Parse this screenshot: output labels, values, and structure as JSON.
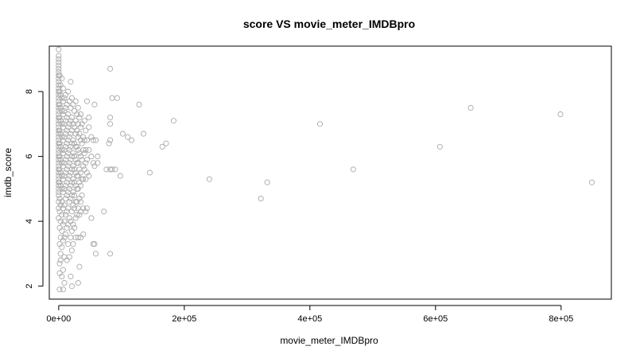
{
  "chart_data": {
    "type": "scatter",
    "title": "score VS movie_meter_IMDBpro",
    "xlabel": "movie_meter_IMDBpro",
    "ylabel": "imdb_score",
    "xlim": [
      -15000,
      880000
    ],
    "ylim": [
      1.6,
      9.4
    ],
    "x_ticks": [
      0,
      200000,
      400000,
      600000,
      800000
    ],
    "x_tick_labels": [
      "0e+00",
      "2e+05",
      "4e+05",
      "6e+05",
      "8e+05"
    ],
    "y_ticks": [
      2,
      4,
      6,
      8
    ],
    "y_tick_labels": [
      "2",
      "4",
      "6",
      "8"
    ],
    "grid": false,
    "legend": "none",
    "point_color": "#a9a9a9",
    "points": [
      [
        0,
        9.3
      ],
      [
        0,
        9.1
      ],
      [
        0,
        9.0
      ],
      [
        0,
        8.9
      ],
      [
        0,
        8.8
      ],
      [
        0,
        8.7
      ],
      [
        0,
        8.6
      ],
      [
        0,
        8.5
      ],
      [
        0,
        8.4
      ],
      [
        0,
        8.3
      ],
      [
        0,
        8.2
      ],
      [
        0,
        8.1
      ],
      [
        0,
        8.0
      ],
      [
        0,
        7.9
      ],
      [
        0,
        7.8
      ],
      [
        0,
        7.7
      ],
      [
        0,
        7.6
      ],
      [
        0,
        7.5
      ],
      [
        0,
        7.4
      ],
      [
        0,
        7.3
      ],
      [
        0,
        7.2
      ],
      [
        0,
        7.1
      ],
      [
        0,
        7.0
      ],
      [
        0,
        6.9
      ],
      [
        0,
        6.8
      ],
      [
        0,
        6.7
      ],
      [
        0,
        6.6
      ],
      [
        0,
        6.5
      ],
      [
        0,
        6.4
      ],
      [
        0,
        6.3
      ],
      [
        0,
        6.2
      ],
      [
        0,
        6.1
      ],
      [
        0,
        6.0
      ],
      [
        0,
        5.9
      ],
      [
        0,
        5.8
      ],
      [
        0,
        5.7
      ],
      [
        0,
        5.6
      ],
      [
        0,
        5.5
      ],
      [
        0,
        5.4
      ],
      [
        0,
        5.3
      ],
      [
        0,
        5.2
      ],
      [
        0,
        5.1
      ],
      [
        0,
        5.0
      ],
      [
        0,
        4.9
      ],
      [
        0,
        4.8
      ],
      [
        0,
        4.6
      ],
      [
        0,
        4.4
      ],
      [
        0,
        4.1
      ],
      [
        1500,
        8.5
      ],
      [
        1500,
        8.0
      ],
      [
        1500,
        7.6
      ],
      [
        1500,
        7.2
      ],
      [
        1500,
        6.8
      ],
      [
        1500,
        6.4
      ],
      [
        1500,
        6.0
      ],
      [
        1500,
        5.6
      ],
      [
        1500,
        5.2
      ],
      [
        1500,
        4.7
      ],
      [
        1500,
        4.3
      ],
      [
        1500,
        3.8
      ],
      [
        1500,
        3.3
      ],
      [
        1500,
        2.7
      ],
      [
        1500,
        2.4
      ],
      [
        1500,
        1.9
      ],
      [
        3000,
        8.2
      ],
      [
        3000,
        7.9
      ],
      [
        3000,
        7.5
      ],
      [
        3000,
        7.1
      ],
      [
        3000,
        6.7
      ],
      [
        3000,
        6.3
      ],
      [
        3000,
        5.9
      ],
      [
        3000,
        5.5
      ],
      [
        3000,
        5.1
      ],
      [
        3000,
        4.5
      ],
      [
        3000,
        4.0
      ],
      [
        3000,
        3.5
      ],
      [
        3000,
        3.0
      ],
      [
        3000,
        2.8
      ],
      [
        5000,
        8.4
      ],
      [
        5000,
        7.8
      ],
      [
        5000,
        7.4
      ],
      [
        5000,
        7.0
      ],
      [
        5000,
        6.6
      ],
      [
        5000,
        6.2
      ],
      [
        5000,
        5.8
      ],
      [
        5000,
        5.4
      ],
      [
        5000,
        5.0
      ],
      [
        5000,
        4.6
      ],
      [
        5000,
        4.2
      ],
      [
        5000,
        3.7
      ],
      [
        5000,
        3.2
      ],
      [
        5000,
        2.3
      ],
      [
        7000,
        8.1
      ],
      [
        7000,
        7.7
      ],
      [
        7000,
        7.3
      ],
      [
        7000,
        6.9
      ],
      [
        7000,
        6.5
      ],
      [
        7000,
        6.1
      ],
      [
        7000,
        5.7
      ],
      [
        7000,
        5.3
      ],
      [
        7000,
        4.9
      ],
      [
        7000,
        4.4
      ],
      [
        7000,
        3.9
      ],
      [
        7000,
        3.4
      ],
      [
        7000,
        2.5
      ],
      [
        7000,
        1.9
      ],
      [
        9000,
        7.8
      ],
      [
        9000,
        7.4
      ],
      [
        9000,
        7.0
      ],
      [
        9000,
        6.6
      ],
      [
        9000,
        6.2
      ],
      [
        9000,
        5.8
      ],
      [
        9000,
        5.4
      ],
      [
        9000,
        5.0
      ],
      [
        9000,
        4.5
      ],
      [
        9000,
        4.0
      ],
      [
        9000,
        3.5
      ],
      [
        9000,
        2.9
      ],
      [
        9000,
        2.1
      ],
      [
        11000,
        7.9
      ],
      [
        11000,
        7.5
      ],
      [
        11000,
        7.1
      ],
      [
        11000,
        6.7
      ],
      [
        11000,
        6.3
      ],
      [
        11000,
        5.9
      ],
      [
        11000,
        5.5
      ],
      [
        11000,
        5.1
      ],
      [
        11000,
        4.7
      ],
      [
        11000,
        4.2
      ],
      [
        11000,
        3.6
      ],
      [
        13000,
        7.6
      ],
      [
        13000,
        7.2
      ],
      [
        13000,
        6.8
      ],
      [
        13000,
        6.4
      ],
      [
        13000,
        6.0
      ],
      [
        13000,
        5.6
      ],
      [
        13000,
        5.2
      ],
      [
        13000,
        4.8
      ],
      [
        13000,
        4.3
      ],
      [
        13000,
        3.8
      ],
      [
        13000,
        2.8
      ],
      [
        15000,
        8.0
      ],
      [
        15000,
        7.3
      ],
      [
        15000,
        6.9
      ],
      [
        15000,
        6.5
      ],
      [
        15000,
        6.1
      ],
      [
        15000,
        5.7
      ],
      [
        15000,
        5.3
      ],
      [
        15000,
        4.9
      ],
      [
        15000,
        4.4
      ],
      [
        15000,
        3.9
      ],
      [
        15000,
        3.3
      ],
      [
        17000,
        7.7
      ],
      [
        17000,
        7.0
      ],
      [
        17000,
        6.6
      ],
      [
        17000,
        6.2
      ],
      [
        17000,
        5.8
      ],
      [
        17000,
        5.4
      ],
      [
        17000,
        5.0
      ],
      [
        17000,
        4.6
      ],
      [
        17000,
        4.1
      ],
      [
        17000,
        2.9
      ],
      [
        19000,
        8.3
      ],
      [
        19000,
        7.5
      ],
      [
        19000,
        7.1
      ],
      [
        19000,
        6.7
      ],
      [
        19000,
        6.3
      ],
      [
        19000,
        5.9
      ],
      [
        19000,
        5.5
      ],
      [
        19000,
        5.1
      ],
      [
        19000,
        4.7
      ],
      [
        19000,
        4.0
      ],
      [
        19000,
        3.5
      ],
      [
        19000,
        2.3
      ],
      [
        21000,
        7.8
      ],
      [
        21000,
        7.2
      ],
      [
        21000,
        6.8
      ],
      [
        21000,
        6.4
      ],
      [
        21000,
        6.0
      ],
      [
        21000,
        5.6
      ],
      [
        21000,
        5.2
      ],
      [
        21000,
        4.8
      ],
      [
        21000,
        4.3
      ],
      [
        21000,
        3.7
      ],
      [
        21000,
        3.1
      ],
      [
        21000,
        2.0
      ],
      [
        23000,
        7.6
      ],
      [
        23000,
        7.0
      ],
      [
        23000,
        6.5
      ],
      [
        23000,
        6.1
      ],
      [
        23000,
        5.7
      ],
      [
        23000,
        5.3
      ],
      [
        23000,
        4.9
      ],
      [
        23000,
        4.5
      ],
      [
        23000,
        3.9
      ],
      [
        23000,
        3.3
      ],
      [
        25000,
        7.4
      ],
      [
        25000,
        6.9
      ],
      [
        25000,
        6.4
      ],
      [
        25000,
        6.0
      ],
      [
        25000,
        5.6
      ],
      [
        25000,
        5.2
      ],
      [
        25000,
        4.8
      ],
      [
        25000,
        4.4
      ],
      [
        25000,
        3.8
      ],
      [
        27000,
        7.7
      ],
      [
        27000,
        7.1
      ],
      [
        27000,
        6.7
      ],
      [
        27000,
        6.3
      ],
      [
        27000,
        5.9
      ],
      [
        27000,
        5.5
      ],
      [
        27000,
        5.1
      ],
      [
        27000,
        4.6
      ],
      [
        27000,
        4.1
      ],
      [
        27000,
        3.5
      ],
      [
        29000,
        7.3
      ],
      [
        29000,
        6.8
      ],
      [
        29000,
        6.3
      ],
      [
        29000,
        5.8
      ],
      [
        29000,
        5.4
      ],
      [
        29000,
        5.0
      ],
      [
        29000,
        4.6
      ],
      [
        29000,
        4.2
      ],
      [
        31000,
        7.5
      ],
      [
        31000,
        7.0
      ],
      [
        31000,
        6.6
      ],
      [
        31000,
        6.2
      ],
      [
        31000,
        5.8
      ],
      [
        31000,
        5.4
      ],
      [
        31000,
        5.0
      ],
      [
        31000,
        4.4
      ],
      [
        31000,
        3.5
      ],
      [
        31000,
        2.1
      ],
      [
        33000,
        7.2
      ],
      [
        33000,
        6.7
      ],
      [
        33000,
        6.1
      ],
      [
        33000,
        5.6
      ],
      [
        33000,
        5.2
      ],
      [
        33000,
        4.7
      ],
      [
        33000,
        4.2
      ],
      [
        33000,
        2.6
      ],
      [
        35000,
        7.3
      ],
      [
        35000,
        6.9
      ],
      [
        35000,
        6.5
      ],
      [
        35000,
        6.0
      ],
      [
        35000,
        5.5
      ],
      [
        35000,
        5.1
      ],
      [
        35000,
        4.6
      ],
      [
        35000,
        4.3
      ],
      [
        35000,
        3.5
      ],
      [
        37000,
        7.0
      ],
      [
        37000,
        6.4
      ],
      [
        37000,
        5.9
      ],
      [
        37000,
        5.3
      ],
      [
        37000,
        4.8
      ],
      [
        39000,
        6.6
      ],
      [
        39000,
        6.2
      ],
      [
        39000,
        5.7
      ],
      [
        39000,
        5.3
      ],
      [
        39000,
        4.4
      ],
      [
        39000,
        3.6
      ],
      [
        41000,
        7.1
      ],
      [
        41000,
        6.5
      ],
      [
        41000,
        6.1
      ],
      [
        41000,
        5.6
      ],
      [
        43000,
        6.8
      ],
      [
        43000,
        6.2
      ],
      [
        43000,
        5.8
      ],
      [
        43000,
        5.3
      ],
      [
        43000,
        4.3
      ],
      [
        45000,
        7.7
      ],
      [
        45000,
        6.5
      ],
      [
        45000,
        5.9
      ],
      [
        45000,
        5.5
      ],
      [
        45000,
        4.4
      ],
      [
        48000,
        7.2
      ],
      [
        48000,
        6.9
      ],
      [
        48000,
        6.2
      ],
      [
        48000,
        5.4
      ],
      [
        52000,
        6.6
      ],
      [
        52000,
        6.0
      ],
      [
        52000,
        4.1
      ],
      [
        55000,
        6.5
      ],
      [
        55000,
        5.8
      ],
      [
        55000,
        3.3
      ],
      [
        57000,
        7.6
      ],
      [
        57000,
        5.7
      ],
      [
        57000,
        3.3
      ],
      [
        59000,
        6.5
      ],
      [
        59000,
        3.0
      ],
      [
        62000,
        6.0
      ],
      [
        62000,
        5.8
      ],
      [
        72000,
        4.3
      ],
      [
        76000,
        5.6
      ],
      [
        80000,
        6.4
      ],
      [
        82000,
        8.7
      ],
      [
        82000,
        7.2
      ],
      [
        82000,
        7.0
      ],
      [
        82000,
        6.5
      ],
      [
        82000,
        5.6
      ],
      [
        82000,
        3.0
      ],
      [
        85000,
        7.8
      ],
      [
        85000,
        5.6
      ],
      [
        90000,
        5.6
      ],
      [
        93000,
        7.8
      ],
      [
        98000,
        5.4
      ],
      [
        102000,
        6.7
      ],
      [
        110000,
        6.6
      ],
      [
        116000,
        6.5
      ],
      [
        128000,
        7.6
      ],
      [
        135000,
        6.7
      ],
      [
        145000,
        5.5
      ],
      [
        165000,
        6.3
      ],
      [
        171000,
        6.4
      ],
      [
        183000,
        7.1
      ],
      [
        240000,
        5.3
      ],
      [
        322000,
        4.7
      ],
      [
        332000,
        5.2
      ],
      [
        416000,
        7.0
      ],
      [
        469000,
        5.6
      ],
      [
        607000,
        6.3
      ],
      [
        656000,
        7.5
      ],
      [
        799000,
        7.3
      ],
      [
        849000,
        5.2
      ]
    ]
  }
}
